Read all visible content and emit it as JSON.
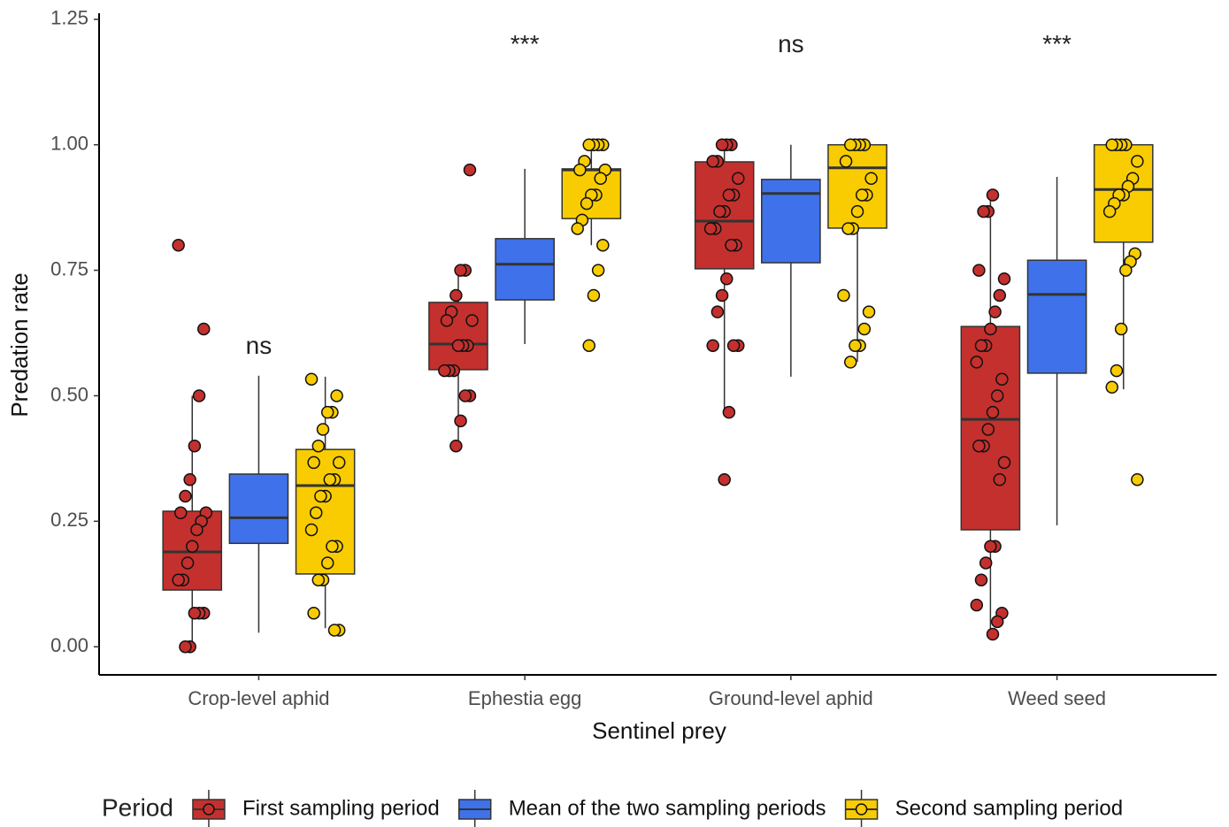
{
  "chart_data": {
    "type": "boxplot",
    "x_label": "Sentinel prey",
    "y_label": "Predation rate",
    "legend_title": "Period",
    "legend_position": "bottom",
    "categories": [
      "Crop-level aphid",
      "Ephestia egg",
      "Ground-level aphid",
      "Weed seed"
    ],
    "annotations": [
      "ns",
      "***",
      "ns",
      "***"
    ],
    "ylim": [
      -0.056,
      1.262
    ],
    "yticks": [
      {
        "value": 0,
        "label": "0.00"
      },
      {
        "value": 0.25,
        "label": "0.25"
      },
      {
        "value": 0.5,
        "label": "0.50"
      },
      {
        "value": 0.75,
        "label": "0.75"
      },
      {
        "value": 1,
        "label": "1.00"
      },
      {
        "value": 1.25,
        "label": "1.25"
      }
    ],
    "series": [
      {
        "name": "First sampling period",
        "color": "#c4302e",
        "boxes": [
          {
            "min": 0,
            "q1": 0.113,
            "median": 0.189,
            "q3": 0.27,
            "max": 0.5
          },
          {
            "min": 0.402,
            "q1": 0.552,
            "median": 0.603,
            "q3": 0.686,
            "max": 0.756
          },
          {
            "min": 0.472,
            "q1": 0.753,
            "median": 0.848,
            "q3": 0.966,
            "max": 1
          },
          {
            "min": 0.023,
            "q1": 0.233,
            "median": 0.453,
            "q3": 0.638,
            "max": 0.904
          }
        ],
        "points": [
          [
            0.8,
            0.633,
            0.5,
            0.4,
            0.333,
            0.3,
            0.267,
            0.267,
            0.25,
            0.233,
            0.2,
            0.167,
            0.133,
            0.133,
            0.067,
            0.067,
            0.067,
            0,
            0
          ],
          [
            0.95,
            0.75,
            0.75,
            0.7,
            0.667,
            0.65,
            0.65,
            0.6,
            0.6,
            0.6,
            0.55,
            0.55,
            0.55,
            0.5,
            0.5,
            0.45,
            0.4
          ],
          [
            1,
            1,
            1,
            0.967,
            0.967,
            0.933,
            0.9,
            0.9,
            0.867,
            0.867,
            0.833,
            0.833,
            0.8,
            0.8,
            0.733,
            0.7,
            0.667,
            0.6,
            0.6,
            0.6,
            0.467,
            0.333
          ],
          [
            0.9,
            0.867,
            0.867,
            0.75,
            0.733,
            0.7,
            0.667,
            0.633,
            0.6,
            0.6,
            0.567,
            0.533,
            0.5,
            0.467,
            0.433,
            0.4,
            0.4,
            0.367,
            0.333,
            0.2,
            0.2,
            0.167,
            0.133,
            0.083,
            0.067,
            0.05,
            0.025
          ]
        ]
      },
      {
        "name": "Mean of the two sampling periods",
        "color": "#3f72ea",
        "boxes": [
          {
            "min": 0.028,
            "q1": 0.206,
            "median": 0.257,
            "q3": 0.344,
            "max": 0.54
          },
          {
            "min": 0.603,
            "q1": 0.691,
            "median": 0.762,
            "q3": 0.813,
            "max": 0.952
          },
          {
            "min": 0.538,
            "q1": 0.765,
            "median": 0.903,
            "q3": 0.931,
            "max": 1
          },
          {
            "min": 0.242,
            "q1": 0.545,
            "median": 0.702,
            "q3": 0.77,
            "max": 0.936
          }
        ]
      },
      {
        "name": "Second sampling period",
        "color": "#f8cc00",
        "boxes": [
          {
            "min": 0.037,
            "q1": 0.145,
            "median": 0.321,
            "q3": 0.393,
            "max": 0.538
          },
          {
            "min": 0.8,
            "q1": 0.853,
            "median": 0.95,
            "q3": 0.952,
            "max": 1
          },
          {
            "min": 0.568,
            "q1": 0.834,
            "median": 0.954,
            "q3": 1,
            "max": 1
          },
          {
            "min": 0.513,
            "q1": 0.806,
            "median": 0.911,
            "q3": 1,
            "max": 1
          }
        ],
        "points": [
          [
            0.533,
            0.5,
            0.467,
            0.467,
            0.433,
            0.4,
            0.367,
            0.367,
            0.333,
            0.333,
            0.3,
            0.3,
            0.267,
            0.233,
            0.2,
            0.2,
            0.167,
            0.133,
            0.133,
            0.067,
            0.033,
            0.033
          ],
          [
            1,
            1,
            1,
            1,
            0.967,
            0.95,
            0.95,
            0.933,
            0.9,
            0.9,
            0.883,
            0.85,
            0.833,
            0.8,
            0.75,
            0.7,
            0.6
          ],
          [
            1,
            1,
            1,
            1,
            0.967,
            0.933,
            0.9,
            0.9,
            0.867,
            0.833,
            0.833,
            0.7,
            0.667,
            0.633,
            0.6,
            0.6,
            0.567
          ],
          [
            1,
            1,
            1,
            1,
            0.967,
            0.933,
            0.917,
            0.9,
            0.9,
            0.883,
            0.867,
            0.783,
            0.767,
            0.75,
            0.633,
            0.55,
            0.517,
            0.333
          ]
        ]
      }
    ]
  }
}
